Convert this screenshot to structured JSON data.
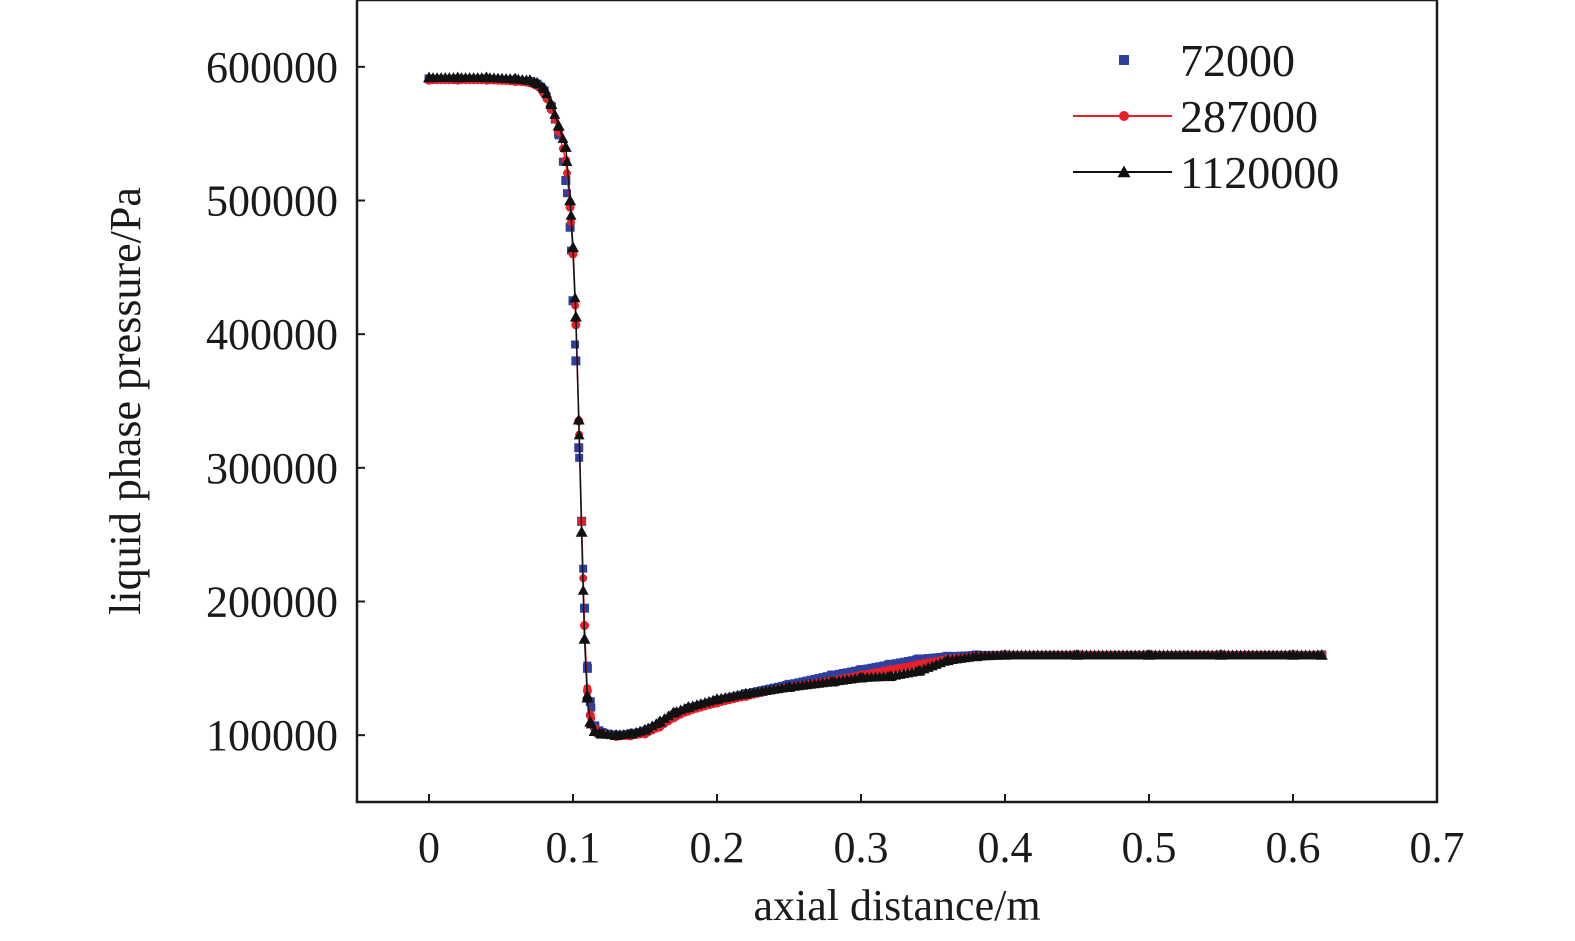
{
  "chart_data": {
    "type": "line",
    "title": "",
    "xlabel": "axial distance/m",
    "ylabel": "liquid phase pressure/Pa",
    "xlim": [
      -0.05,
      0.7
    ],
    "ylim": [
      50000,
      650000
    ],
    "x_ticks": [
      "0",
      "0.1",
      "0.2",
      "0.3",
      "0.4",
      "0.5",
      "0.6",
      "0.7"
    ],
    "y_ticks": [
      "100000",
      "200000",
      "300000",
      "400000",
      "500000",
      "600000"
    ],
    "grid": false,
    "legend_position": "top-right",
    "series": [
      {
        "name": "72000",
        "color": "#2e3f9e",
        "marker": "square",
        "line": false,
        "x": [
          0,
          0.02,
          0.04,
          0.06,
          0.07,
          0.075,
          0.08,
          0.085,
          0.09,
          0.095,
          0.098,
          0.1,
          0.102,
          0.104,
          0.106,
          0.108,
          0.11,
          0.112,
          0.115,
          0.12,
          0.13,
          0.14,
          0.15,
          0.16,
          0.17,
          0.18,
          0.2,
          0.22,
          0.25,
          0.28,
          0.3,
          0.32,
          0.34,
          0.36,
          0.38,
          0.4,
          0.45,
          0.5,
          0.55,
          0.6,
          0.62
        ],
        "y": [
          591000,
          591000,
          591000,
          590000,
          589000,
          587000,
          582000,
          570000,
          550000,
          515000,
          480000,
          425000,
          380000,
          315000,
          260000,
          195000,
          150000,
          125000,
          107000,
          102000,
          100000,
          101000,
          103000,
          108000,
          115000,
          120000,
          126000,
          131000,
          138000,
          145000,
          149000,
          153000,
          157000,
          159000,
          160000,
          160000,
          160000,
          160000,
          160000,
          160000,
          160000
        ]
      },
      {
        "name": "287000",
        "color": "#e8202a",
        "marker": "circle",
        "line": true,
        "x": [
          0,
          0.02,
          0.04,
          0.06,
          0.07,
          0.075,
          0.08,
          0.085,
          0.09,
          0.095,
          0.098,
          0.1,
          0.102,
          0.104,
          0.106,
          0.108,
          0.11,
          0.112,
          0.115,
          0.12,
          0.13,
          0.14,
          0.15,
          0.16,
          0.17,
          0.18,
          0.2,
          0.22,
          0.25,
          0.28,
          0.3,
          0.32,
          0.34,
          0.36,
          0.38,
          0.4,
          0.45,
          0.5,
          0.55,
          0.6,
          0.62
        ],
        "y": [
          590000,
          590000,
          590000,
          589000,
          588000,
          586000,
          580000,
          568000,
          552000,
          530000,
          495000,
          460000,
          407000,
          335000,
          260000,
          182000,
          133000,
          115000,
          105000,
          101000,
          99000,
          99500,
          101000,
          106000,
          113000,
          118000,
          124000,
          129000,
          136000,
          141000,
          145000,
          149000,
          153000,
          157000,
          159000,
          160000,
          160000,
          160000,
          160000,
          160000,
          160000
        ]
      },
      {
        "name": "1120000",
        "color": "#111111",
        "marker": "triangle",
        "line": true,
        "x": [
          0,
          0.02,
          0.04,
          0.06,
          0.07,
          0.075,
          0.08,
          0.085,
          0.09,
          0.095,
          0.098,
          0.1,
          0.102,
          0.104,
          0.106,
          0.108,
          0.11,
          0.112,
          0.115,
          0.12,
          0.13,
          0.14,
          0.15,
          0.16,
          0.17,
          0.18,
          0.2,
          0.22,
          0.25,
          0.28,
          0.3,
          0.32,
          0.34,
          0.36,
          0.38,
          0.4,
          0.45,
          0.5,
          0.55,
          0.6,
          0.62
        ],
        "y": [
          592000,
          592000,
          592000,
          591000,
          590000,
          588000,
          584000,
          572000,
          556000,
          540000,
          500000,
          465000,
          413000,
          336000,
          252000,
          172000,
          128000,
          110000,
          103000,
          101000,
          100000,
          101000,
          104000,
          110000,
          117000,
          121000,
          127000,
          131000,
          136000,
          140000,
          143000,
          144000,
          148000,
          156000,
          159000,
          160000,
          160000,
          160000,
          160000,
          160000,
          160000
        ]
      }
    ]
  }
}
